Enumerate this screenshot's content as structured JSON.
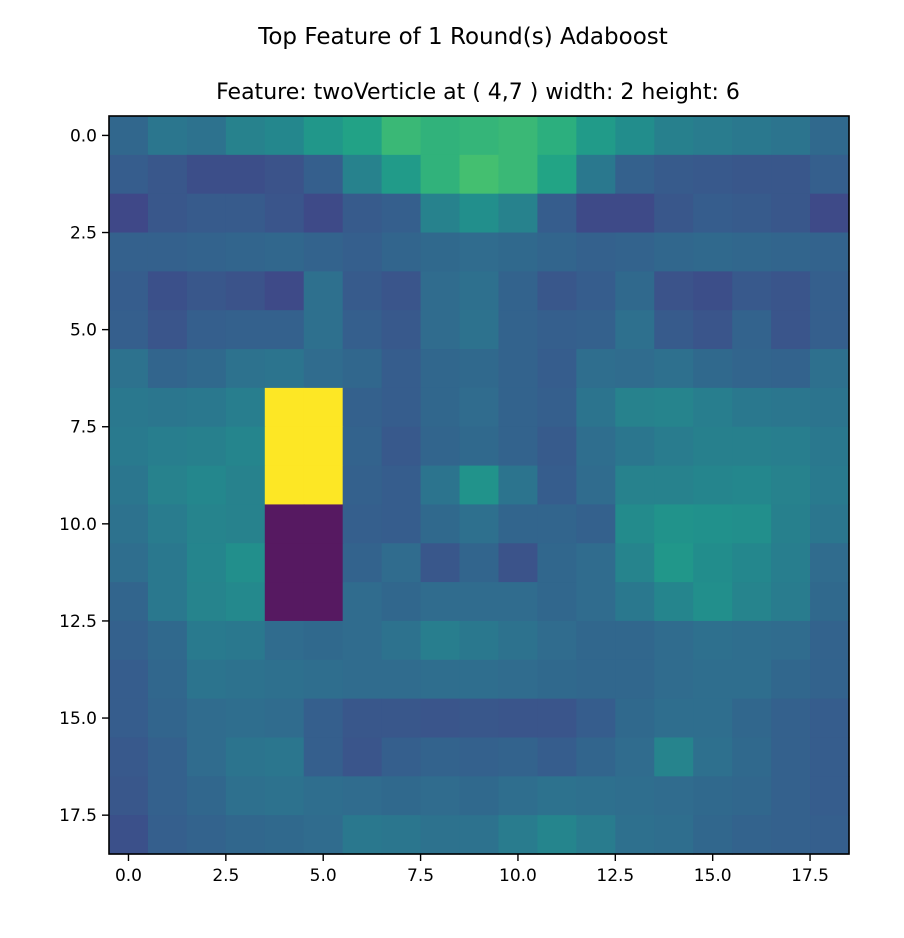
{
  "figure": {
    "suptitle": "Top Feature of 1 Round(s) Adaboost"
  },
  "chart_data": {
    "type": "heatmap",
    "title": "Feature: twoVerticle at ( 4,7 ) width: 2 height: 6",
    "xlabel": "",
    "ylabel": "",
    "rows": 19,
    "cols": 19,
    "xlim": [
      -0.5,
      18.5
    ],
    "ylim": [
      18.5,
      -0.5
    ],
    "xticks": [
      0.0,
      2.5,
      5.0,
      7.5,
      10.0,
      12.5,
      15.0,
      17.5
    ],
    "yticks": [
      0.0,
      2.5,
      5.0,
      7.5,
      10.0,
      12.5,
      15.0,
      17.5
    ],
    "xtick_labels": [
      "0.0",
      "2.5",
      "5.0",
      "7.5",
      "10.0",
      "12.5",
      "15.0",
      "17.5"
    ],
    "ytick_labels": [
      "0.0",
      "2.5",
      "5.0",
      "7.5",
      "10.0",
      "12.5",
      "15.0",
      "17.5"
    ],
    "colormap": "viridis",
    "grid": false,
    "feature_overlay": {
      "type": "twoVerticle",
      "x": 4,
      "y": 7,
      "width": 2,
      "height": 6,
      "positive_color": "#fde725",
      "negative_color": "#561961"
    },
    "values": [
      [
        0.42,
        0.49,
        0.47,
        0.55,
        0.58,
        0.66,
        0.72,
        0.8,
        0.78,
        0.79,
        0.8,
        0.77,
        0.68,
        0.61,
        0.54,
        0.52,
        0.5,
        0.48,
        0.43
      ],
      [
        0.37,
        0.34,
        0.3,
        0.3,
        0.32,
        0.38,
        0.55,
        0.68,
        0.78,
        0.82,
        0.8,
        0.73,
        0.5,
        0.39,
        0.36,
        0.35,
        0.34,
        0.34,
        0.38
      ],
      [
        0.27,
        0.34,
        0.36,
        0.36,
        0.33,
        0.28,
        0.36,
        0.38,
        0.55,
        0.62,
        0.55,
        0.37,
        0.28,
        0.28,
        0.34,
        0.37,
        0.36,
        0.34,
        0.28
      ],
      [
        0.39,
        0.39,
        0.4,
        0.41,
        0.42,
        0.4,
        0.38,
        0.41,
        0.43,
        0.44,
        0.43,
        0.41,
        0.39,
        0.4,
        0.42,
        0.43,
        0.42,
        0.41,
        0.4
      ],
      [
        0.37,
        0.31,
        0.34,
        0.32,
        0.28,
        0.46,
        0.36,
        0.33,
        0.44,
        0.46,
        0.4,
        0.34,
        0.37,
        0.43,
        0.32,
        0.3,
        0.35,
        0.33,
        0.38
      ],
      [
        0.38,
        0.33,
        0.38,
        0.39,
        0.39,
        0.46,
        0.38,
        0.35,
        0.44,
        0.47,
        0.4,
        0.38,
        0.39,
        0.46,
        0.36,
        0.33,
        0.4,
        0.33,
        0.38
      ],
      [
        0.47,
        0.41,
        0.43,
        0.47,
        0.48,
        0.44,
        0.42,
        0.37,
        0.42,
        0.43,
        0.4,
        0.37,
        0.45,
        0.44,
        0.46,
        0.43,
        0.41,
        0.4,
        0.46
      ],
      [
        0.5,
        0.49,
        0.5,
        0.53,
        1.0,
        1.0,
        0.39,
        0.37,
        0.42,
        0.44,
        0.4,
        0.38,
        0.48,
        0.55,
        0.56,
        0.53,
        0.5,
        0.49,
        0.48
      ],
      [
        0.51,
        0.53,
        0.54,
        0.57,
        1.0,
        1.0,
        0.4,
        0.35,
        0.41,
        0.43,
        0.4,
        0.36,
        0.45,
        0.49,
        0.52,
        0.54,
        0.54,
        0.53,
        0.5
      ],
      [
        0.49,
        0.55,
        0.58,
        0.55,
        1.0,
        1.0,
        0.39,
        0.37,
        0.48,
        0.64,
        0.48,
        0.37,
        0.44,
        0.55,
        0.55,
        0.57,
        0.58,
        0.55,
        0.51
      ],
      [
        0.47,
        0.52,
        0.56,
        0.55,
        0.0,
        0.0,
        0.38,
        0.37,
        0.43,
        0.46,
        0.41,
        0.41,
        0.39,
        0.6,
        0.64,
        0.63,
        0.62,
        0.54,
        0.49
      ],
      [
        0.45,
        0.5,
        0.57,
        0.62,
        0.0,
        0.0,
        0.4,
        0.44,
        0.34,
        0.41,
        0.32,
        0.42,
        0.44,
        0.56,
        0.66,
        0.61,
        0.58,
        0.53,
        0.44
      ],
      [
        0.41,
        0.5,
        0.56,
        0.59,
        0.0,
        0.0,
        0.44,
        0.42,
        0.44,
        0.44,
        0.44,
        0.42,
        0.44,
        0.5,
        0.57,
        0.62,
        0.56,
        0.52,
        0.43
      ],
      [
        0.39,
        0.43,
        0.51,
        0.5,
        0.44,
        0.43,
        0.44,
        0.47,
        0.53,
        0.5,
        0.47,
        0.44,
        0.42,
        0.42,
        0.44,
        0.46,
        0.45,
        0.44,
        0.4
      ],
      [
        0.37,
        0.42,
        0.48,
        0.47,
        0.46,
        0.45,
        0.44,
        0.44,
        0.45,
        0.45,
        0.44,
        0.43,
        0.42,
        0.42,
        0.44,
        0.45,
        0.45,
        0.42,
        0.4
      ],
      [
        0.37,
        0.41,
        0.44,
        0.45,
        0.44,
        0.38,
        0.34,
        0.34,
        0.33,
        0.34,
        0.33,
        0.33,
        0.37,
        0.43,
        0.45,
        0.45,
        0.42,
        0.39,
        0.37
      ],
      [
        0.35,
        0.39,
        0.44,
        0.48,
        0.49,
        0.38,
        0.33,
        0.38,
        0.4,
        0.39,
        0.4,
        0.37,
        0.41,
        0.44,
        0.56,
        0.46,
        0.43,
        0.39,
        0.37
      ],
      [
        0.34,
        0.39,
        0.42,
        0.46,
        0.47,
        0.45,
        0.44,
        0.43,
        0.44,
        0.43,
        0.45,
        0.47,
        0.46,
        0.45,
        0.44,
        0.43,
        0.42,
        0.39,
        0.37
      ],
      [
        0.31,
        0.38,
        0.4,
        0.42,
        0.43,
        0.44,
        0.5,
        0.49,
        0.47,
        0.47,
        0.52,
        0.57,
        0.52,
        0.46,
        0.45,
        0.42,
        0.4,
        0.39,
        0.38
      ]
    ]
  }
}
